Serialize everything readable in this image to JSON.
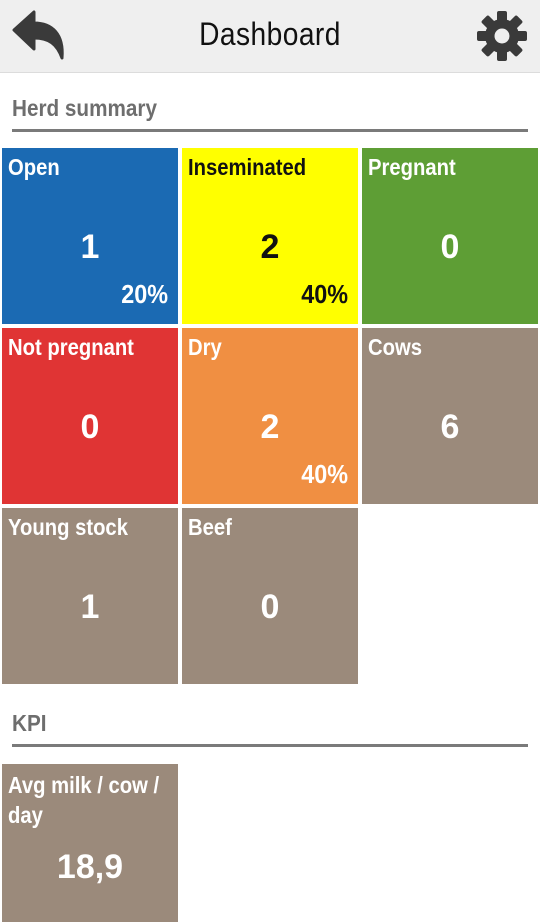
{
  "header": {
    "title": "Dashboard",
    "back_icon": "back-arrow-icon",
    "settings_icon": "gear-icon"
  },
  "herd_summary": {
    "title": "Herd summary",
    "tiles": [
      {
        "label": "Open",
        "value": "1",
        "percent": "20%",
        "color": "#1b6ab3"
      },
      {
        "label": "Inseminated",
        "value": "2",
        "percent": "40%",
        "color": "#ffff00"
      },
      {
        "label": "Pregnant",
        "value": "0",
        "percent": "",
        "color": "#5e9e35"
      },
      {
        "label": "Not pregnant",
        "value": "0",
        "percent": "",
        "color": "#e03434"
      },
      {
        "label": "Dry",
        "value": "2",
        "percent": "40%",
        "color": "#f08f42"
      },
      {
        "label": "Cows",
        "value": "6",
        "percent": "",
        "color": "#9b8a7b"
      },
      {
        "label": "Young stock",
        "value": "1",
        "percent": "",
        "color": "#9b8a7b"
      },
      {
        "label": "Beef",
        "value": "0",
        "percent": "",
        "color": "#9b8a7b"
      }
    ]
  },
  "kpi": {
    "title": "KPI",
    "tiles": [
      {
        "label": "Avg milk / cow / day",
        "value": "18,9",
        "color": "#9b8a7b"
      }
    ]
  }
}
